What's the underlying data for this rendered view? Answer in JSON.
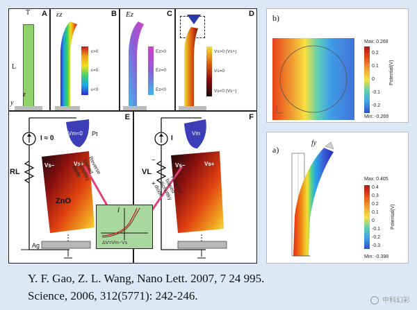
{
  "figure_left": {
    "panels": {
      "A": "A",
      "B": "B",
      "C": "C",
      "D": "D",
      "E": "E",
      "F": "F"
    },
    "panel_a": {
      "t_label": "T",
      "l_label": "L",
      "z_axis": "z",
      "y_axis": "y"
    },
    "panel_b": {
      "symbol": "εz",
      "legend": [
        "ε>0",
        "ε=0",
        "ε<0"
      ]
    },
    "panel_c": {
      "symbol": "Ez",
      "legend": [
        "Ez>0",
        "Ez=0",
        "Ez<0"
      ]
    },
    "panel_d": {
      "legend": [
        "Vs>0 (Vs+)",
        "Vs=0",
        "Vs<0 (Vs−)"
      ]
    },
    "panel_e": {
      "current": "I ≈ 0",
      "resistor": "RL",
      "tip_metal": "Pt",
      "tip_label": "Vm≈0",
      "vs_minus": "Vs−",
      "vs_plus": "Vs+",
      "material": "ZnO",
      "base": "Ag",
      "diode_text": [
        "Reverse",
        "biased",
        "Schottky",
        "diode"
      ]
    },
    "panel_f": {
      "current": "I",
      "voltage": "VL",
      "minus": "−",
      "plus": "+",
      "tip_label": "Vm",
      "vs_minus": "Vs−",
      "vs_plus": "Vs+",
      "diode_text": [
        "Forward",
        "biased",
        "Schottky",
        "diode"
      ]
    },
    "iv_inset": {
      "i_label": "I",
      "v_label": "ΔV=Vm−Vs"
    }
  },
  "figure_b": {
    "label": "b)",
    "colorbar_title": "Potential(V)",
    "max": "Max: 0.268",
    "min": "Min: -0.269",
    "ticks": [
      "0.2",
      "0.1",
      "0",
      "-0.1",
      "-0.2"
    ]
  },
  "figure_a": {
    "label": "a)",
    "force": "fy",
    "colorbar_title": "Potential(V)",
    "max": "Max: 0.405",
    "min": "Min: -0.398",
    "ticks": [
      "0.4",
      "0.3",
      "0.2",
      "0.1",
      "0",
      "-0.1",
      "-0.2",
      "-0.3"
    ]
  },
  "citation": {
    "line1": "Y. F. Gao, Z. L. Wang, Nano Lett. 2007, 7 24 995.",
    "line2": "Science, 2006, 312(5771): 242-246."
  },
  "watermark": "中科幻彩",
  "colors": {
    "background": "#dde8f7",
    "nanowire_green": "#8fd16b",
    "tip_blue": "#3a3fb8",
    "inset_green": "#a8d8a0",
    "arrow_pink": "#e0407a"
  }
}
